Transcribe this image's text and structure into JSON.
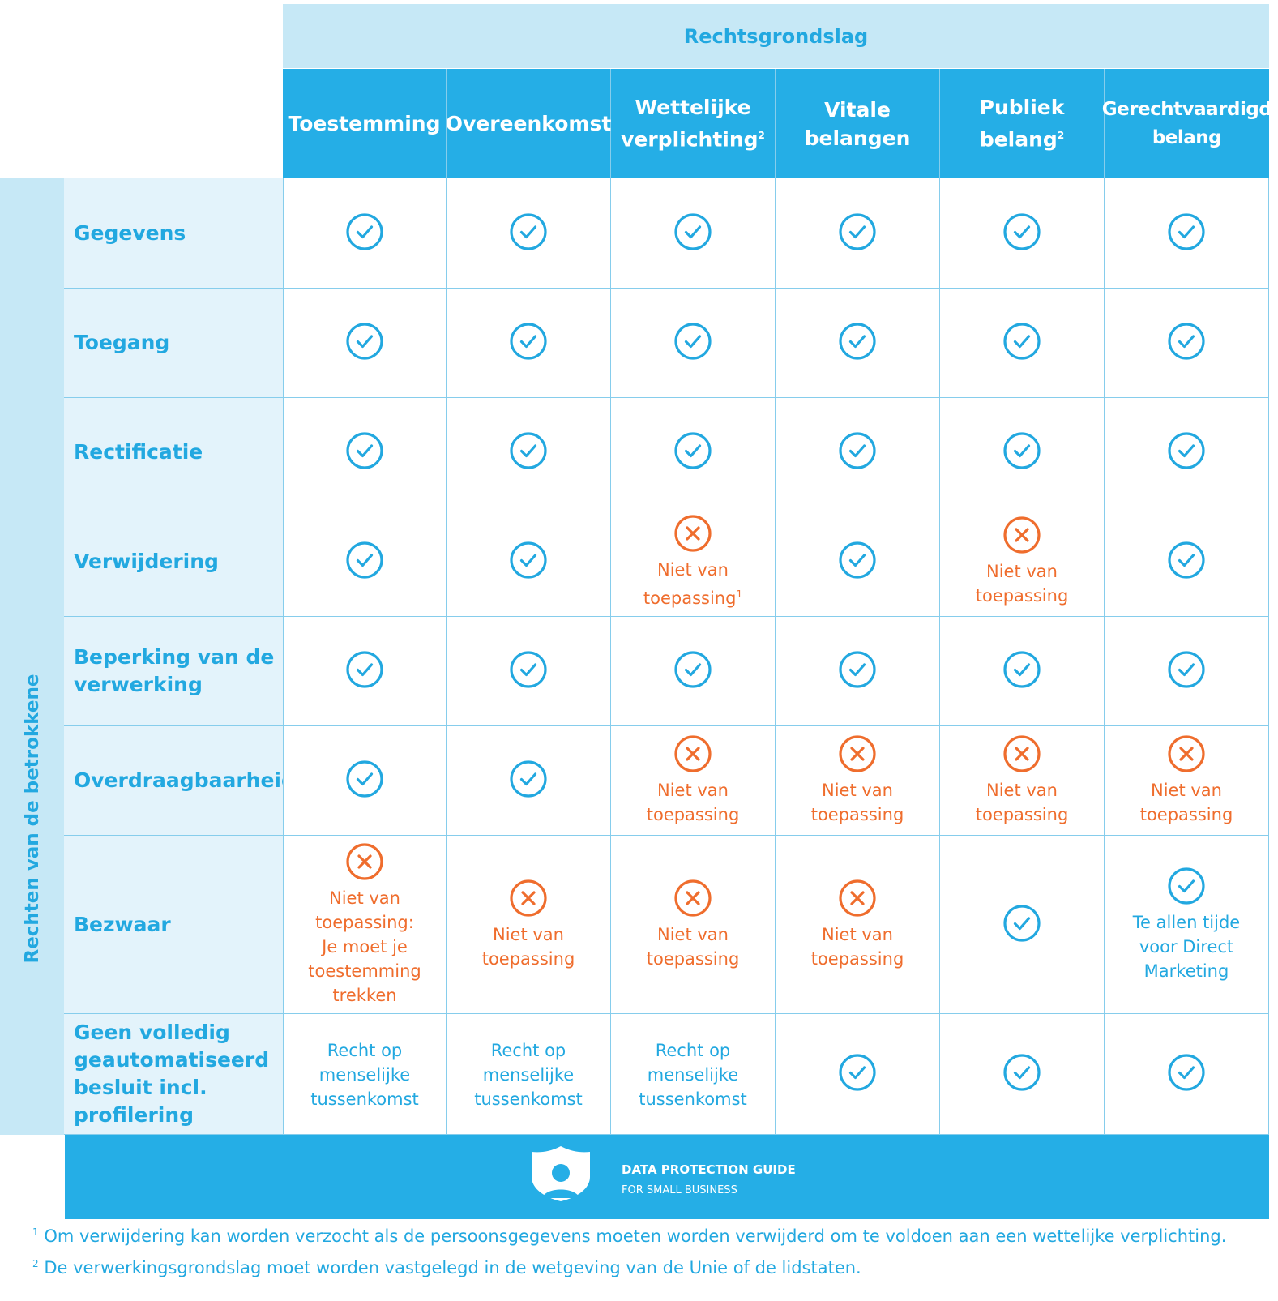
{
  "title": "Rechtsgrondslag",
  "side_label": "Rechten van de betrokkene",
  "columns": [
    {
      "line1": "Toestemming",
      "line2": "",
      "sup": ""
    },
    {
      "line1": "Overeenkomst",
      "line2": "",
      "sup": ""
    },
    {
      "line1": "Wettelijke",
      "line2": "verplichting",
      "sup": "2"
    },
    {
      "line1": "Vitale",
      "line2": "belangen",
      "sup": ""
    },
    {
      "line1": "Publiek",
      "line2": "belang",
      "sup": "2"
    },
    {
      "line1": "Gerechtvaardigd",
      "line2": "belang",
      "sup": ""
    }
  ],
  "rows": [
    {
      "label": "Gegevens",
      "cells": [
        {
          "icon": "check-icon",
          "text": "",
          "sup": ""
        },
        {
          "icon": "check-icon",
          "text": "",
          "sup": ""
        },
        {
          "icon": "check-icon",
          "text": "",
          "sup": ""
        },
        {
          "icon": "check-icon",
          "text": "",
          "sup": ""
        },
        {
          "icon": "check-icon",
          "text": "",
          "sup": ""
        },
        {
          "icon": "check-icon",
          "text": "",
          "sup": ""
        }
      ]
    },
    {
      "label": "Toegang",
      "cells": [
        {
          "icon": "check-icon",
          "text": "",
          "sup": ""
        },
        {
          "icon": "check-icon",
          "text": "",
          "sup": ""
        },
        {
          "icon": "check-icon",
          "text": "",
          "sup": ""
        },
        {
          "icon": "check-icon",
          "text": "",
          "sup": ""
        },
        {
          "icon": "check-icon",
          "text": "",
          "sup": ""
        },
        {
          "icon": "check-icon",
          "text": "",
          "sup": ""
        }
      ]
    },
    {
      "label": "Rectificatie",
      "cells": [
        {
          "icon": "check-icon",
          "text": "",
          "sup": ""
        },
        {
          "icon": "check-icon",
          "text": "",
          "sup": ""
        },
        {
          "icon": "check-icon",
          "text": "",
          "sup": ""
        },
        {
          "icon": "check-icon",
          "text": "",
          "sup": ""
        },
        {
          "icon": "check-icon",
          "text": "",
          "sup": ""
        },
        {
          "icon": "check-icon",
          "text": "",
          "sup": ""
        }
      ]
    },
    {
      "label": "Verwijdering",
      "cells": [
        {
          "icon": "check-icon",
          "text": "",
          "sup": ""
        },
        {
          "icon": "check-icon",
          "text": "",
          "sup": ""
        },
        {
          "icon": "cross-icon",
          "text": "Niet van\ntoepassing",
          "sup": "1"
        },
        {
          "icon": "check-icon",
          "text": "",
          "sup": ""
        },
        {
          "icon": "cross-icon",
          "text": "Niet van\ntoepassing",
          "sup": ""
        },
        {
          "icon": "check-icon",
          "text": "",
          "sup": ""
        }
      ]
    },
    {
      "label": "Beperking van de\nverwerking",
      "cells": [
        {
          "icon": "check-icon",
          "text": "",
          "sup": ""
        },
        {
          "icon": "check-icon",
          "text": "",
          "sup": ""
        },
        {
          "icon": "check-icon",
          "text": "",
          "sup": ""
        },
        {
          "icon": "check-icon",
          "text": "",
          "sup": ""
        },
        {
          "icon": "check-icon",
          "text": "",
          "sup": ""
        },
        {
          "icon": "check-icon",
          "text": "",
          "sup": ""
        }
      ]
    },
    {
      "label": "Overdraagbaarheid",
      "cells": [
        {
          "icon": "check-icon",
          "text": "",
          "sup": ""
        },
        {
          "icon": "check-icon",
          "text": "",
          "sup": ""
        },
        {
          "icon": "cross-icon",
          "text": "Niet van\ntoepassing",
          "sup": ""
        },
        {
          "icon": "cross-icon",
          "text": "Niet van\ntoepassing",
          "sup": ""
        },
        {
          "icon": "cross-icon",
          "text": "Niet van\ntoepassing",
          "sup": ""
        },
        {
          "icon": "cross-icon",
          "text": "Niet van\ntoepassing",
          "sup": ""
        }
      ]
    },
    {
      "label": "Bezwaar",
      "cells": [
        {
          "icon": "cross-icon",
          "text": "Niet van\ntoepassing:\nJe moet je\ntoestemming\ntrekken",
          "sup": ""
        },
        {
          "icon": "cross-icon",
          "text": "Niet van\ntoepassing",
          "sup": ""
        },
        {
          "icon": "cross-icon",
          "text": "Niet van\ntoepassing",
          "sup": ""
        },
        {
          "icon": "cross-icon",
          "text": "Niet van\ntoepassing",
          "sup": ""
        },
        {
          "icon": "check-icon",
          "text": "",
          "sup": ""
        },
        {
          "icon": "check-icon",
          "text": "Te allen tijde\nvoor Direct\nMarketing",
          "sup": ""
        }
      ]
    },
    {
      "label": "Geen volledig\ngeautomatiseerd\nbesluit incl.\nprofilering",
      "cells": [
        {
          "icon": "",
          "text": "Recht op\nmenselijke\ntussenkomst",
          "sup": ""
        },
        {
          "icon": "",
          "text": "Recht op\nmenselijke\ntussenkomst",
          "sup": ""
        },
        {
          "icon": "",
          "text": "Recht op\nmenselijke\ntussenkomst",
          "sup": ""
        },
        {
          "icon": "check-icon",
          "text": "",
          "sup": ""
        },
        {
          "icon": "check-icon",
          "text": "",
          "sup": ""
        },
        {
          "icon": "check-icon",
          "text": "",
          "sup": ""
        }
      ]
    }
  ],
  "brand": {
    "line1": "DATA PROTECTION GUIDE",
    "line2": "FOR SMALL BUSINESS"
  },
  "footnotes": [
    {
      "mark": "1",
      "text": "Om verwijdering kan worden verzocht als de persoonsgegevens moeten worden verwijderd om te voldoen aan een wettelijke verplichting."
    },
    {
      "mark": "2",
      "text": "De verwerkingsgrondslag moet worden vastgelegd in de wetgeving van de Unie of de lidstaten."
    }
  ],
  "colors": {
    "blue": "#25aee6",
    "light_blue": "#c6e8f6",
    "pale_blue": "#e3f3fb",
    "orange": "#ef6d2d"
  }
}
